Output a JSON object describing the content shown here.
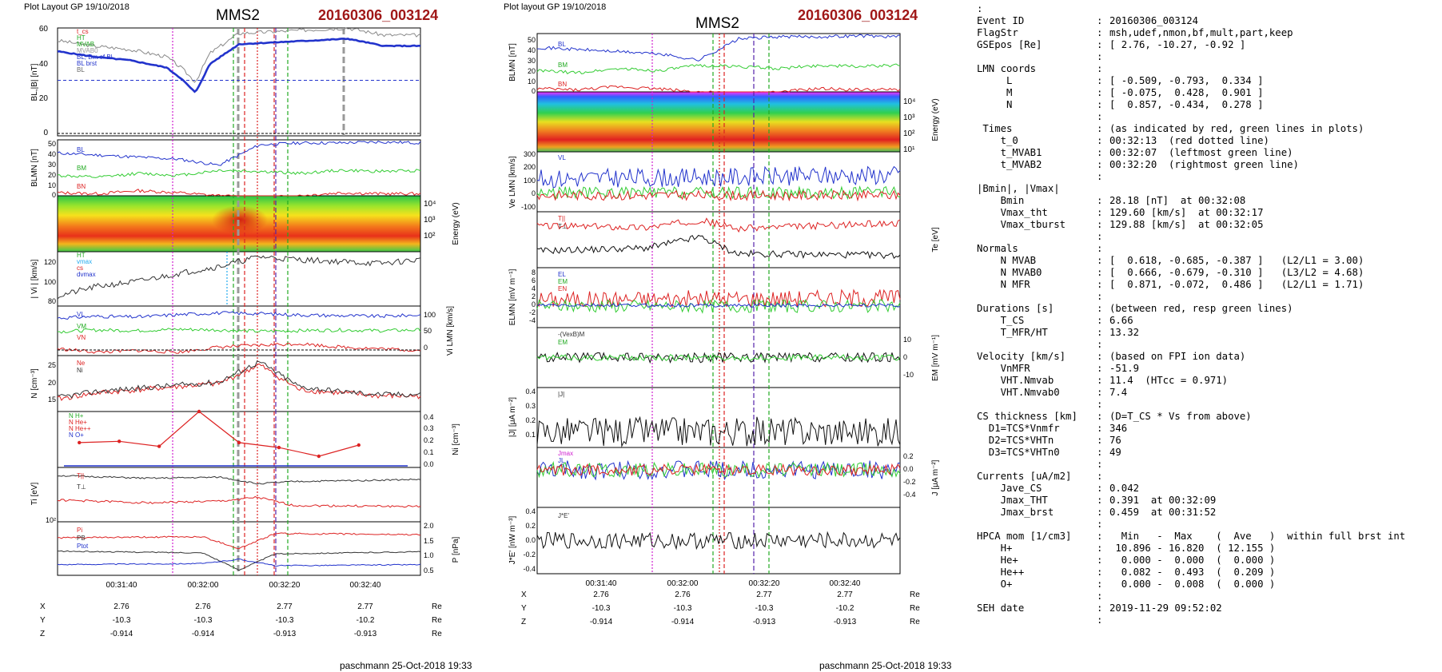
{
  "left_figure": {
    "header": "Plot Layout GP 19/10/2018",
    "mission": "MMS2",
    "event": "20160306_003124",
    "footer": "paschmann 25-Oct-2018 19:33",
    "time_ticks": [
      "00:31:40",
      "00:32:00",
      "00:32:20",
      "00:32:40"
    ],
    "position_rows": [
      {
        "label": "X",
        "values": [
          "2.76",
          "2.76",
          "2.77",
          "2.77"
        ],
        "unit": "Re"
      },
      {
        "label": "Y",
        "values": [
          "-10.3",
          "-10.3",
          "-10.3",
          "-10.2"
        ],
        "unit": "Re"
      },
      {
        "label": "Z",
        "values": [
          "-0.914",
          "-0.914",
          "-0.913",
          "-0.913"
        ],
        "unit": "Re"
      }
    ],
    "panels": {
      "b": {
        "ylabel": "BL,|B| [nT]",
        "ticks": [
          "60",
          "40",
          "20",
          "0"
        ],
        "legend": [
          "t_cs",
          "HT",
          "MVAB",
          "MVAB0",
          "BL, Bm of Bl",
          "BL brst",
          "BL"
        ]
      },
      "blmn": {
        "ylabel": "BLMN [nT]",
        "ticks": [
          "50",
          "40",
          "30",
          "20",
          "10",
          "0"
        ],
        "series": [
          "BL",
          "BM",
          "BN"
        ]
      },
      "spec": {
        "ylabel": "Energy (eV)",
        "ticks": [
          "10⁴",
          "10³",
          "10²"
        ]
      },
      "vi": {
        "ylabel": "| Vi | [km/s]",
        "ticks": [
          "120",
          "100",
          "80"
        ],
        "legend": [
          "HT",
          "vmax",
          "cs",
          "dvmax"
        ]
      },
      "vilmn": {
        "ylabel": "Vi LMN [km/s]",
        "ticks": [
          "100",
          "50",
          "0"
        ],
        "series": [
          "VL",
          "VM",
          "VN"
        ]
      },
      "n": {
        "ylabel": "N [cm⁻³]",
        "ticks": [
          "25",
          "20",
          "15"
        ],
        "series": [
          "Ne",
          "Ni"
        ]
      },
      "nion": {
        "ylabel": "Ni [cm⁻³]",
        "ticks": [
          "0.4",
          "0.3",
          "0.2",
          "0.1",
          "0.0"
        ],
        "legend": [
          "N H+",
          "N He+",
          "N He++",
          "N O+"
        ]
      },
      "ti": {
        "ylabel": "Ti [eV]",
        "ticks": [
          "10²"
        ],
        "series": [
          "T||",
          "T⊥"
        ]
      },
      "p": {
        "ylabel": "P [nPa]",
        "ticks": [
          "2.0",
          "1.5",
          "1.0",
          "0.5"
        ],
        "series": [
          "Pi",
          "PB",
          "Ptot"
        ]
      }
    }
  },
  "right_figure": {
    "header": "Plot layout GP 19/10/2018",
    "mission": "MMS2",
    "event": "20160306_003124",
    "footer": "paschmann 25-Oct-2018 19:33",
    "time_ticks": [
      "00:31:40",
      "00:32:00",
      "00:32:20",
      "00:32:40"
    ],
    "position_rows": [
      {
        "label": "X",
        "values": [
          "2.76",
          "2.76",
          "2.77",
          "2.77"
        ],
        "unit": "Re"
      },
      {
        "label": "Y",
        "values": [
          "-10.3",
          "-10.3",
          "-10.3",
          "-10.2"
        ],
        "unit": "Re"
      },
      {
        "label": "Z",
        "values": [
          "-0.914",
          "-0.914",
          "-0.913",
          "-0.913"
        ],
        "unit": "Re"
      }
    ],
    "panels": {
      "blmn": {
        "ylabel": "BLMN [nT]",
        "ticks": [
          "50",
          "40",
          "30",
          "20",
          "10",
          "0"
        ],
        "series": [
          "BL",
          "BM",
          "BN"
        ]
      },
      "spec": {
        "ylabel": "Energy (eV)",
        "ticks": [
          "10⁴",
          "10³",
          "10²",
          "10¹"
        ]
      },
      "ve": {
        "ylabel": "Ve LMN [km/s]",
        "ticks": [
          "300",
          "200",
          "100",
          "0",
          "-100"
        ],
        "series": [
          "VL",
          "VM",
          "VN"
        ]
      },
      "te": {
        "ylabel": "Te [eV]",
        "series": [
          "T||",
          "T⊥"
        ]
      },
      "e": {
        "ylabel": "ELMN [mV m⁻¹]",
        "ticks": [
          "8",
          "6",
          "4",
          "2",
          "0",
          "-2",
          "-4"
        ],
        "series": [
          "EL",
          "EM",
          "EN"
        ]
      },
      "em": {
        "ylabel": "EM [mV m⁻¹]",
        "ticks": [
          "10",
          "0",
          "-10"
        ],
        "series": [
          "-(VexB)M",
          "EM"
        ]
      },
      "j": {
        "ylabel": "|J| [μA m⁻²]",
        "ticks": [
          "0.4",
          "0.3",
          "0.2",
          "0.1"
        ],
        "series": [
          "|J|"
        ]
      },
      "jlmn": {
        "ylabel": "J [μA m⁻²]",
        "ticks": [
          "0.2",
          "0.0",
          "-0.2",
          "-0.4"
        ],
        "series": [
          "Jmax",
          "JL"
        ]
      },
      "je": {
        "ylabel": "J*E' [nW m⁻³]",
        "ticks": [
          "0.4",
          "0.2",
          "0.0",
          "-0.2",
          "-0.4"
        ],
        "series": [
          "J*E'"
        ]
      }
    }
  },
  "summary": {
    "title": ":",
    "rows": [
      [
        "Event ID",
        ":",
        "20160306_003124"
      ],
      [
        "FlagStr",
        ":",
        "msh,udef,nmon,bf,mult,part,keep"
      ],
      [
        "GSEpos [Re]",
        ":",
        "[ 2.76, -10.27, -0.92 ]"
      ],
      [
        "",
        ":",
        ""
      ],
      [
        "LMN coords",
        ":",
        ""
      ],
      [
        "     L",
        ":",
        "[ -0.509, -0.793,  0.334 ]"
      ],
      [
        "     M",
        ":",
        "[ -0.075,  0.428,  0.901 ]"
      ],
      [
        "     N",
        ":",
        "[  0.857, -0.434,  0.278 ]"
      ],
      [
        "",
        ":",
        ""
      ],
      [
        " Times",
        ":",
        "(as indicated by red, green lines in plots)"
      ],
      [
        "    t_0",
        ":",
        "00:32:13  (red dotted line)"
      ],
      [
        "    t_MVAB1",
        ":",
        "00:32:07  (leftmost green line)"
      ],
      [
        "    t_MVAB2",
        ":",
        "00:32:20  (rightmost green line)"
      ],
      [
        "",
        ":",
        ""
      ],
      [
        "|Bmin|, |Vmax|",
        "",
        ""
      ],
      [
        "    Bmin",
        ":",
        "28.18 [nT]  at 00:32:08"
      ],
      [
        "    Vmax_tht",
        ":",
        "129.60 [km/s]  at 00:32:17"
      ],
      [
        "    Vmax_tburst",
        ":",
        "129.88 [km/s]  at 00:32:05"
      ],
      [
        "",
        ":",
        ""
      ],
      [
        "Normals",
        ":",
        ""
      ],
      [
        "    N MVAB",
        ":",
        "[  0.618, -0.685, -0.387 ]   (L2/L1 = 3.00)"
      ],
      [
        "    N MVAB0",
        ":",
        "[  0.666, -0.679, -0.310 ]   (L3/L2 = 4.68)"
      ],
      [
        "    N MFR",
        ":",
        "[  0.871, -0.072,  0.486 ]   (L2/L1 = 1.71)"
      ],
      [
        "",
        ":",
        ""
      ],
      [
        "Durations [s]",
        ":",
        "(between red, resp green lines)"
      ],
      [
        "    T_CS",
        ":",
        "6.66"
      ],
      [
        "    T_MFR/HT",
        ":",
        "13.32"
      ],
      [
        "",
        ":",
        ""
      ],
      [
        "Velocity [km/s]",
        ":",
        "(based on FPI ion data)"
      ],
      [
        "    VnMFR",
        ":",
        "-51.9"
      ],
      [
        "    VHT.Nmvab",
        ":",
        "11.4  (HTcc = 0.971)"
      ],
      [
        "    VHT.Nmvab0",
        ":",
        "7.4"
      ],
      [
        "",
        ":",
        ""
      ],
      [
        "CS thickness [km]",
        ":",
        "(D=T_CS * Vs from above)"
      ],
      [
        "  D1=TCS*Vnmfr",
        ":",
        "346"
      ],
      [
        "  D2=TCS*VHTn",
        ":",
        "76"
      ],
      [
        "  D3=TCS*VHTn0",
        ":",
        "49"
      ],
      [
        "",
        ":",
        ""
      ],
      [
        "Currents [uA/m2]",
        ":",
        ""
      ],
      [
        "    Jave_CS",
        ":",
        "0.042"
      ],
      [
        "    Jmax_THT",
        ":",
        "0.391  at 00:32:09"
      ],
      [
        "    Jmax_brst",
        ":",
        "0.459  at 00:31:52"
      ],
      [
        "",
        ":",
        ""
      ],
      [
        "HPCA mom [1/cm3]",
        ":",
        "  Min   -  Max    (  Ave   )  within full brst int"
      ],
      [
        "    H+",
        ":",
        " 10.896 - 16.820  ( 12.155 )"
      ],
      [
        "    He+",
        ":",
        "  0.000 -  0.000  (  0.000 )"
      ],
      [
        "    He++",
        ":",
        "  0.082 -  0.493  (  0.209 )"
      ],
      [
        "    O+",
        ":",
        "  0.000 -  0.008  (  0.000 )"
      ],
      [
        "",
        ":",
        ""
      ],
      [
        "SEH date",
        ":",
        "2019-11-29 09:52:02"
      ],
      [
        "",
        ":",
        ""
      ]
    ]
  },
  "chart_data": [
    {
      "type": "line",
      "title": "MMS2 20160306_003124",
      "x_ticks": [
        "00:31:40",
        "00:32:00",
        "00:32:20",
        "00:32:40"
      ],
      "markers": {
        "t_0": "00:32:13",
        "t_MVAB1": "00:32:07",
        "t_MVAB2": "00:32:20"
      },
      "panels": [
        {
          "name": "BL,|B|",
          "ylim": [
            0,
            60
          ],
          "series": [
            {
              "name": "BL",
              "x": [
                0,
                10,
                20,
                25,
                30,
                34,
                38,
                42,
                50,
                60,
                70,
                80,
                90,
                100
              ],
              "values": [
                47,
                44,
                42,
                40,
                38,
                32,
                24,
                40,
                51,
                52,
                53,
                54,
                50,
                50
              ]
            }
          ]
        },
        {
          "name": "BLMN",
          "ylim": [
            0,
            55
          ],
          "series": [
            {
              "name": "BL",
              "values": [
                42,
                40,
                38,
                36,
                30,
                50,
                52,
                52,
                53,
                52
              ]
            },
            {
              "name": "BM",
              "values": [
                20,
                18,
                22,
                20,
                25,
                24,
                22,
                25,
                24,
                25
              ]
            },
            {
              "name": "BN",
              "values": [
                3,
                2,
                5,
                3,
                0,
                -2,
                0,
                3,
                2,
                2
              ]
            }
          ]
        },
        {
          "name": "|Vi|",
          "ylim": [
            75,
            130
          ],
          "series": [
            {
              "name": "|Vi|",
              "values": [
                85,
                95,
                100,
                108,
                115,
                125,
                122,
                120,
                118,
                122
              ]
            }
          ]
        },
        {
          "name": "Vi LMN",
          "ylim": [
            -15,
            130
          ],
          "series": [
            {
              "name": "VL",
              "values": [
                95,
                100,
                98,
                105,
                110,
                108,
                104,
                102,
                100,
                104
              ]
            },
            {
              "name": "VM",
              "values": [
                55,
                60,
                58,
                62,
                60,
                56,
                58,
                60,
                58,
                60
              ]
            },
            {
              "name": "VN",
              "values": [
                5,
                -5,
                0,
                -5,
                10,
                15,
                20,
                10,
                5,
                0
              ]
            }
          ]
        },
        {
          "name": "N",
          "ylim": [
            10,
            28
          ],
          "series": [
            {
              "name": "Ne",
              "values": [
                14,
                16,
                17,
                18,
                19,
                25,
                17,
                16,
                15,
                15
              ]
            },
            {
              "name": "Ni",
              "values": [
                14.5,
                16.5,
                17.5,
                18.5,
                19.5,
                26,
                18,
                16.5,
                15.5,
                15.5
              ]
            }
          ]
        },
        {
          "name": "N ions",
          "ylim": [
            0,
            0.45
          ],
          "series": [
            {
              "name": "N H+",
              "x": [
                6,
                17,
                28,
                39,
                50,
                61,
                72,
                83
              ],
              "values": [
                0.2,
                0.21,
                0.17,
                0.45,
                0.2,
                0.16,
                0.09,
                0.18
              ]
            },
            {
              "name": "N O+",
              "x": [
                6,
                17,
                28,
                39,
                50,
                61,
                72,
                83
              ],
              "values": [
                0.002,
                0.002,
                0.002,
                0.002,
                0.002,
                0.002,
                0.002,
                0.002
              ]
            }
          ]
        }
      ]
    }
  ]
}
